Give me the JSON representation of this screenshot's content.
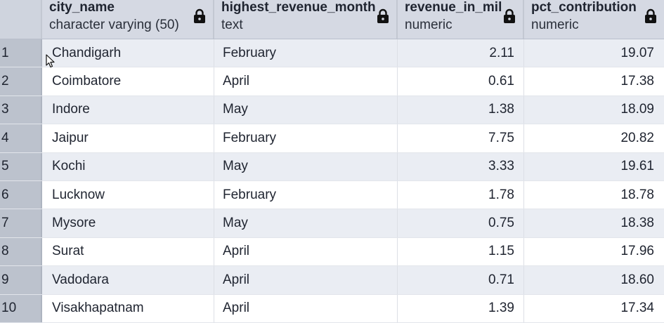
{
  "columns": [
    {
      "name": "city_name",
      "type": "character varying (50)"
    },
    {
      "name": "highest_revenue_month",
      "type": "text"
    },
    {
      "name": "revenue_in_mil",
      "type": "numeric"
    },
    {
      "name": "pct_contribution",
      "type": "numeric"
    }
  ],
  "rows": [
    {
      "n": "1",
      "city": "Chandigarh",
      "month": "February",
      "rev": "2.11",
      "pct": "19.07"
    },
    {
      "n": "2",
      "city": "Coimbatore",
      "month": "April",
      "rev": "0.61",
      "pct": "17.38"
    },
    {
      "n": "3",
      "city": "Indore",
      "month": "May",
      "rev": "1.38",
      "pct": "18.09"
    },
    {
      "n": "4",
      "city": "Jaipur",
      "month": "February",
      "rev": "7.75",
      "pct": "20.82"
    },
    {
      "n": "5",
      "city": "Kochi",
      "month": "May",
      "rev": "3.33",
      "pct": "19.61"
    },
    {
      "n": "6",
      "city": "Lucknow",
      "month": "February",
      "rev": "1.78",
      "pct": "18.78"
    },
    {
      "n": "7",
      "city": "Mysore",
      "month": "May",
      "rev": "0.75",
      "pct": "18.38"
    },
    {
      "n": "8",
      "city": "Surat",
      "month": "April",
      "rev": "1.15",
      "pct": "17.96"
    },
    {
      "n": "9",
      "city": "Vadodara",
      "month": "April",
      "rev": "0.71",
      "pct": "18.60"
    },
    {
      "n": "10",
      "city": "Visakhapatnam",
      "month": "April",
      "rev": "1.39",
      "pct": "17.34"
    }
  ]
}
